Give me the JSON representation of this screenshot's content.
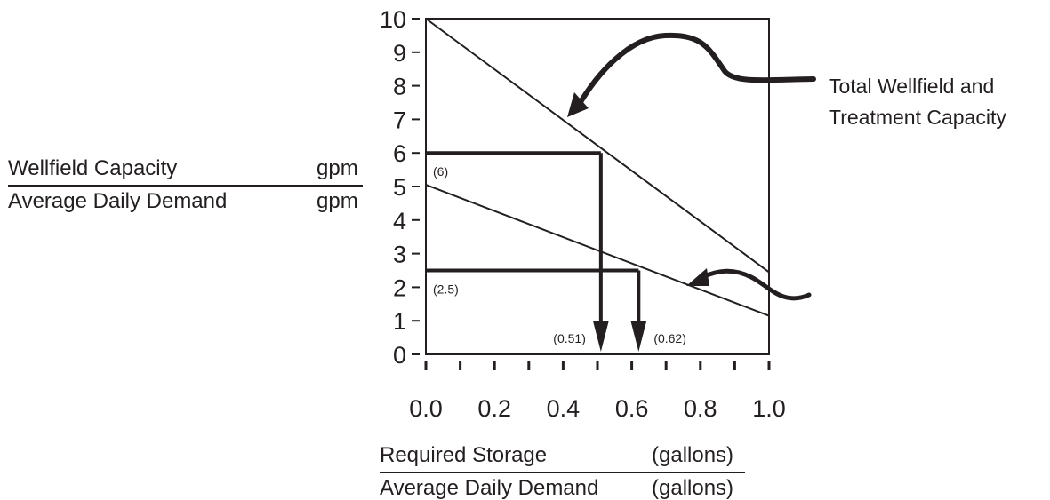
{
  "chart_data": {
    "type": "line",
    "xlim": [
      0,
      1.0
    ],
    "ylim": [
      0,
      10
    ],
    "x_ticks": [
      "0.0",
      "0.2",
      "0.4",
      "0.6",
      "0.8",
      "1.0"
    ],
    "x_minor_ticks": [
      0,
      0.1,
      0.2,
      0.3,
      0.4,
      0.5,
      0.6,
      0.7,
      0.8,
      0.9,
      1.0
    ],
    "y_ticks": [
      "0",
      "1",
      "2",
      "3",
      "4",
      "5",
      "6",
      "7",
      "8",
      "9",
      "10"
    ],
    "grid": false,
    "ylabel": {
      "numerator": "Wellfield Capacity",
      "numerator_unit": "gpm",
      "denominator": "Average Daily Demand",
      "denominator_unit": "gpm"
    },
    "xlabel": {
      "numerator": "Required Storage",
      "numerator_unit": "(gallons)",
      "denominator": "Average Daily Demand",
      "denominator_unit": "(gallons)"
    },
    "series": [
      {
        "x": [
          0.0,
          1.0
        ],
        "y": [
          10.0,
          2.45
        ]
      },
      {
        "x": [
          0.0,
          1.0
        ],
        "y": [
          5.05,
          1.15
        ]
      }
    ],
    "readouts": [
      {
        "y": 6,
        "x": 0.51,
        "y_label": "(6)",
        "x_label": "(0.51)"
      },
      {
        "y": 2.5,
        "x": 0.62,
        "y_label": "(2.5)",
        "x_label": "(0.62)"
      }
    ],
    "annotations": {
      "upper_line_label": [
        "Total Wellfield and",
        "Treatment Capacity"
      ]
    },
    "colors": {
      "ink": "#231f20",
      "background": "#ffffff"
    }
  }
}
